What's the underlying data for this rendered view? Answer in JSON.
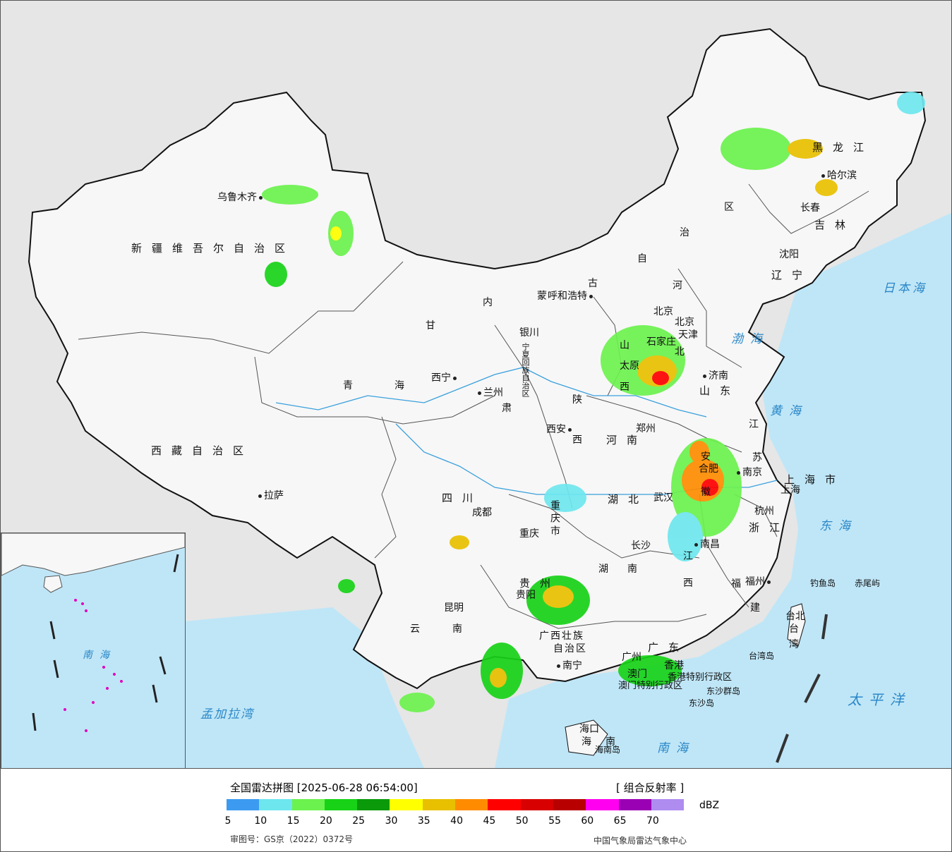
{
  "legend": {
    "title": "全国雷达拼图 [2025-06-28 06:54:00]",
    "product": "[ 组合反射率 ]",
    "unit": "dBZ",
    "ticks": [
      "5",
      "10",
      "15",
      "20",
      "25",
      "30",
      "35",
      "40",
      "45",
      "50",
      "55",
      "60",
      "65",
      "70"
    ],
    "colors": [
      "#3c9bf0",
      "#6ee6ee",
      "#6cf24e",
      "#18d218",
      "#0a9a0a",
      "#ffff00",
      "#e8c000",
      "#ff8c00",
      "#ff0000",
      "#d80000",
      "#b80000",
      "#ff00f0",
      "#9a00b4",
      "#ae8cf0"
    ],
    "review_number": "审图号：GS京（2022）0372号",
    "source": "中国气象局雷达气象中心"
  },
  "regions": {
    "xinjiang": "新疆维吾尔自治区",
    "xizang": "西藏自治区",
    "qinghai": [
      "青",
      "海"
    ],
    "gansu": [
      "甘",
      "肃"
    ],
    "neimenggu": [
      "内",
      "蒙",
      "古",
      "自",
      "治",
      "区"
    ],
    "heilongjiang": "黑龙江",
    "jilin": "吉林",
    "liaoning": "辽宁",
    "hebei": [
      "河",
      "北"
    ],
    "shanxi": [
      "山",
      "西"
    ],
    "shandong": "山东",
    "henan": "河南",
    "shaanxi": [
      "陕",
      "西"
    ],
    "sichuan": "四川",
    "chongqing": "重庆市",
    "hubei": "湖北",
    "hunan": [
      "湖",
      "南"
    ],
    "jiangxi": [
      "江",
      "西"
    ],
    "anhui": [
      "安",
      "徽"
    ],
    "jiangsu": [
      "江",
      "苏"
    ],
    "zhejiang": "浙江",
    "fujian": [
      "福",
      "建"
    ],
    "guangdong": "广东",
    "guangxi": [
      "广西壮族",
      "自治区"
    ],
    "guizhou": "贵州",
    "yunnan": [
      "云",
      "南"
    ],
    "hainan": [
      "海",
      "南"
    ],
    "taiwan": [
      "台",
      "湾"
    ],
    "ningxia": "宁夏回族自治区",
    "shanghai_region": "上海市",
    "hongkong": "香港特别行政区",
    "macau": "澳门特别行政区",
    "beijing_region": "北京"
  },
  "cities": {
    "urumqi": "乌鲁木齐",
    "lhasa": "拉萨",
    "xining": "西宁",
    "lanzhou": "兰州",
    "yinchuan": "银川",
    "hohhot": "呼和浩特",
    "beijing": "北京",
    "tianjin": "天津",
    "shijiazhuang": "石家庄",
    "taiyuan": "太原",
    "jinan": "济南",
    "zhengzhou": "郑州",
    "xian": "西安",
    "chengdu": "成都",
    "chongqing": "重庆",
    "wuhan": "武汉",
    "changsha": "长沙",
    "nanchang": "南昌",
    "hefei": "合肥",
    "nanjing": "南京",
    "shanghai": "上海",
    "hangzhou": "杭州",
    "fuzhou": "福州",
    "guangzhou": "广州",
    "nanning": "南宁",
    "guiyang": "贵阳",
    "kunming": "昆明",
    "haikou": "海口",
    "taipei": "台北",
    "harbin": "哈尔滨",
    "changchun": "长春",
    "shenyang": "沈阳",
    "hongkong": "香港",
    "macau": "澳门"
  },
  "seas": {
    "bohai": "渤海",
    "huanghai": "黄海",
    "donghai": "东海",
    "nanhai": "南海",
    "taipingyang": "太平洋",
    "ribenhai": "日本海",
    "mengjiala": "孟加拉湾"
  },
  "islands": {
    "diaoyu": "钓鱼岛",
    "chiwei": "赤尾屿",
    "taiwan_island": "台湾岛",
    "hainan_island": "海南岛",
    "dongsha_qundao": "东沙群岛",
    "dongsha_dao": "东沙岛"
  },
  "inset": {
    "nanhai": "南海"
  }
}
